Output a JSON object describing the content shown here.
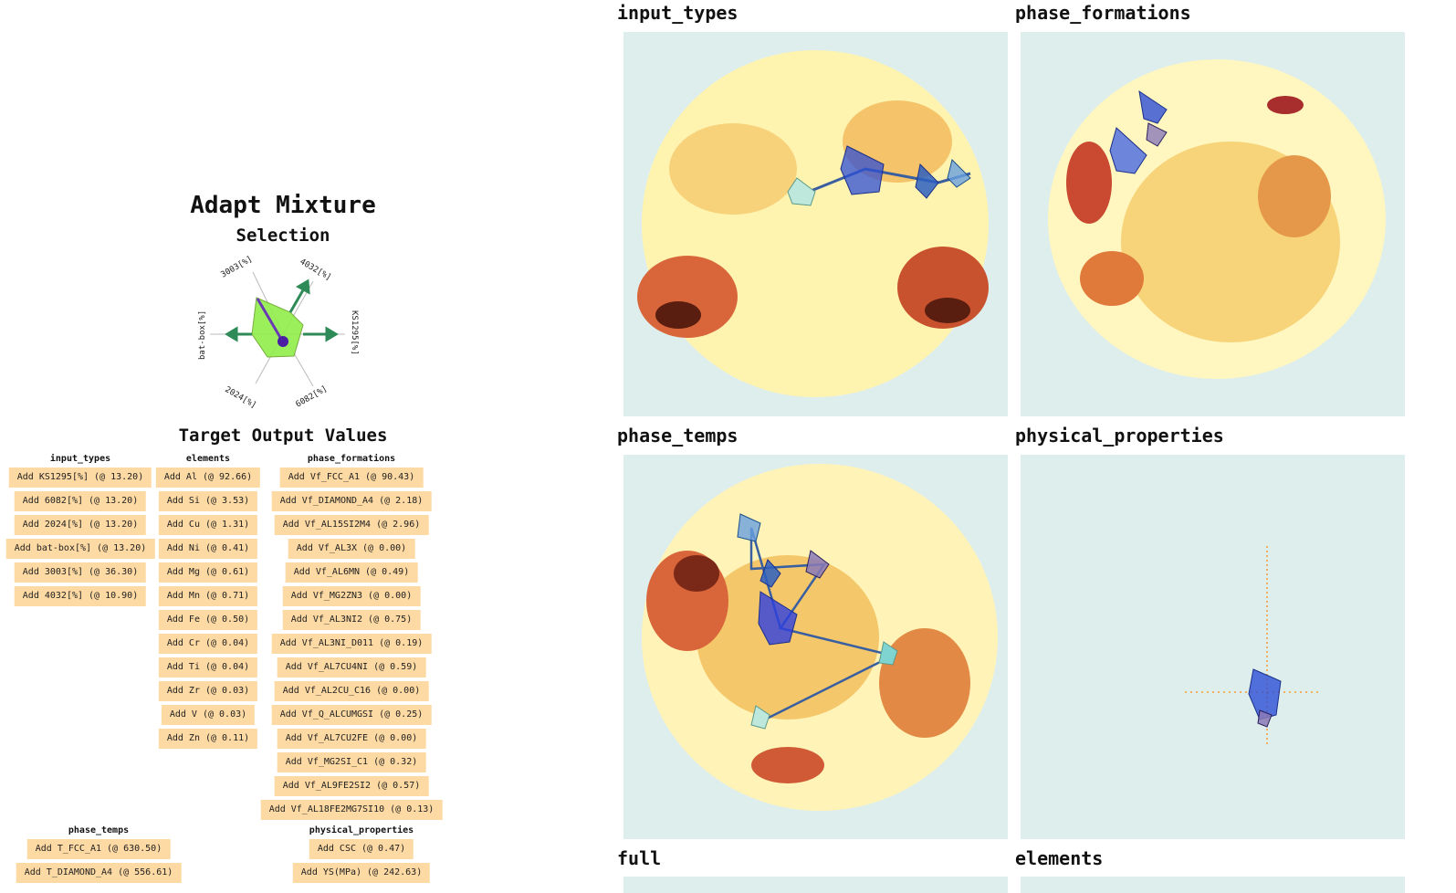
{
  "header": {
    "title": "Adapt Mixture",
    "subtitle": "Selection",
    "target_title": "Target Output Values"
  },
  "radar": {
    "labels": [
      "KS1295[%]",
      "4032[%]",
      "3003[%]",
      "bat-box[%]",
      "2024[%]",
      "6082[%]"
    ],
    "fill_color": "#90ee4a",
    "arrow_color": "#2e8b57",
    "line_color": "#6a3bb5"
  },
  "columns": {
    "input_types": {
      "header": "input_types",
      "buttons": [
        "Add KS1295[%] (@ 13.20)",
        "Add 6082[%] (@ 13.20)",
        "Add 2024[%] (@ 13.20)",
        "Add bat-box[%] (@ 13.20)",
        "Add 3003[%] (@ 36.30)",
        "Add 4032[%] (@ 10.90)"
      ]
    },
    "elements": {
      "header": "elements",
      "buttons": [
        "Add Al (@ 92.66)",
        "Add Si (@ 3.53)",
        "Add Cu (@ 1.31)",
        "Add Ni (@ 0.41)",
        "Add Mg (@ 0.61)",
        "Add Mn (@ 0.71)",
        "Add Fe (@ 0.50)",
        "Add Cr (@ 0.04)",
        "Add Ti (@ 0.04)",
        "Add Zr (@ 0.03)",
        "Add V (@ 0.03)",
        "Add Zn (@ 0.11)"
      ]
    },
    "phase_formations": {
      "header": "phase_formations",
      "buttons": [
        "Add Vf_FCC_A1 (@ 90.43)",
        "Add Vf_DIAMOND_A4 (@ 2.18)",
        "Add Vf_AL15SI2M4 (@ 2.96)",
        "Add Vf_AL3X (@ 0.00)",
        "Add Vf_AL6MN (@ 0.49)",
        "Add Vf_MG2ZN3 (@ 0.00)",
        "Add Vf_AL3NI2 (@ 0.75)",
        "Add Vf_AL3NI_D011 (@ 0.19)",
        "Add Vf_AL7CU4NI (@ 0.59)",
        "Add Vf_AL2CU_C16 (@ 0.00)",
        "Add Vf_Q_ALCUMGSI (@ 0.25)",
        "Add Vf_AL7CU2FE (@ 0.00)",
        "Add Vf_MG2SI_C1 (@ 0.32)",
        "Add Vf_AL9FE2SI2 (@ 0.57)",
        "Add Vf_AL18FE2MG7SI10 (@ 0.13)"
      ]
    },
    "phase_temps": {
      "header": "phase_temps",
      "buttons": [
        "Add T_FCC_A1 (@ 630.50)",
        "Add T_DIAMOND_A4 (@ 556.61)"
      ]
    },
    "physical_properties": {
      "header": "physical_properties",
      "buttons": [
        "Add CSC (@ 0.47)",
        "Add YS(MPa) (@ 242.63)"
      ]
    }
  },
  "maps": {
    "titles": [
      "input_types",
      "phase_formations",
      "phase_temps",
      "physical_properties",
      "full",
      "elements"
    ],
    "background": "#deeeec",
    "hot_color": "#e06a2c",
    "cool_color": "#fff3b0",
    "marker_color": "#2d4fd6",
    "marker_alt_color": "#7fd3d0"
  }
}
